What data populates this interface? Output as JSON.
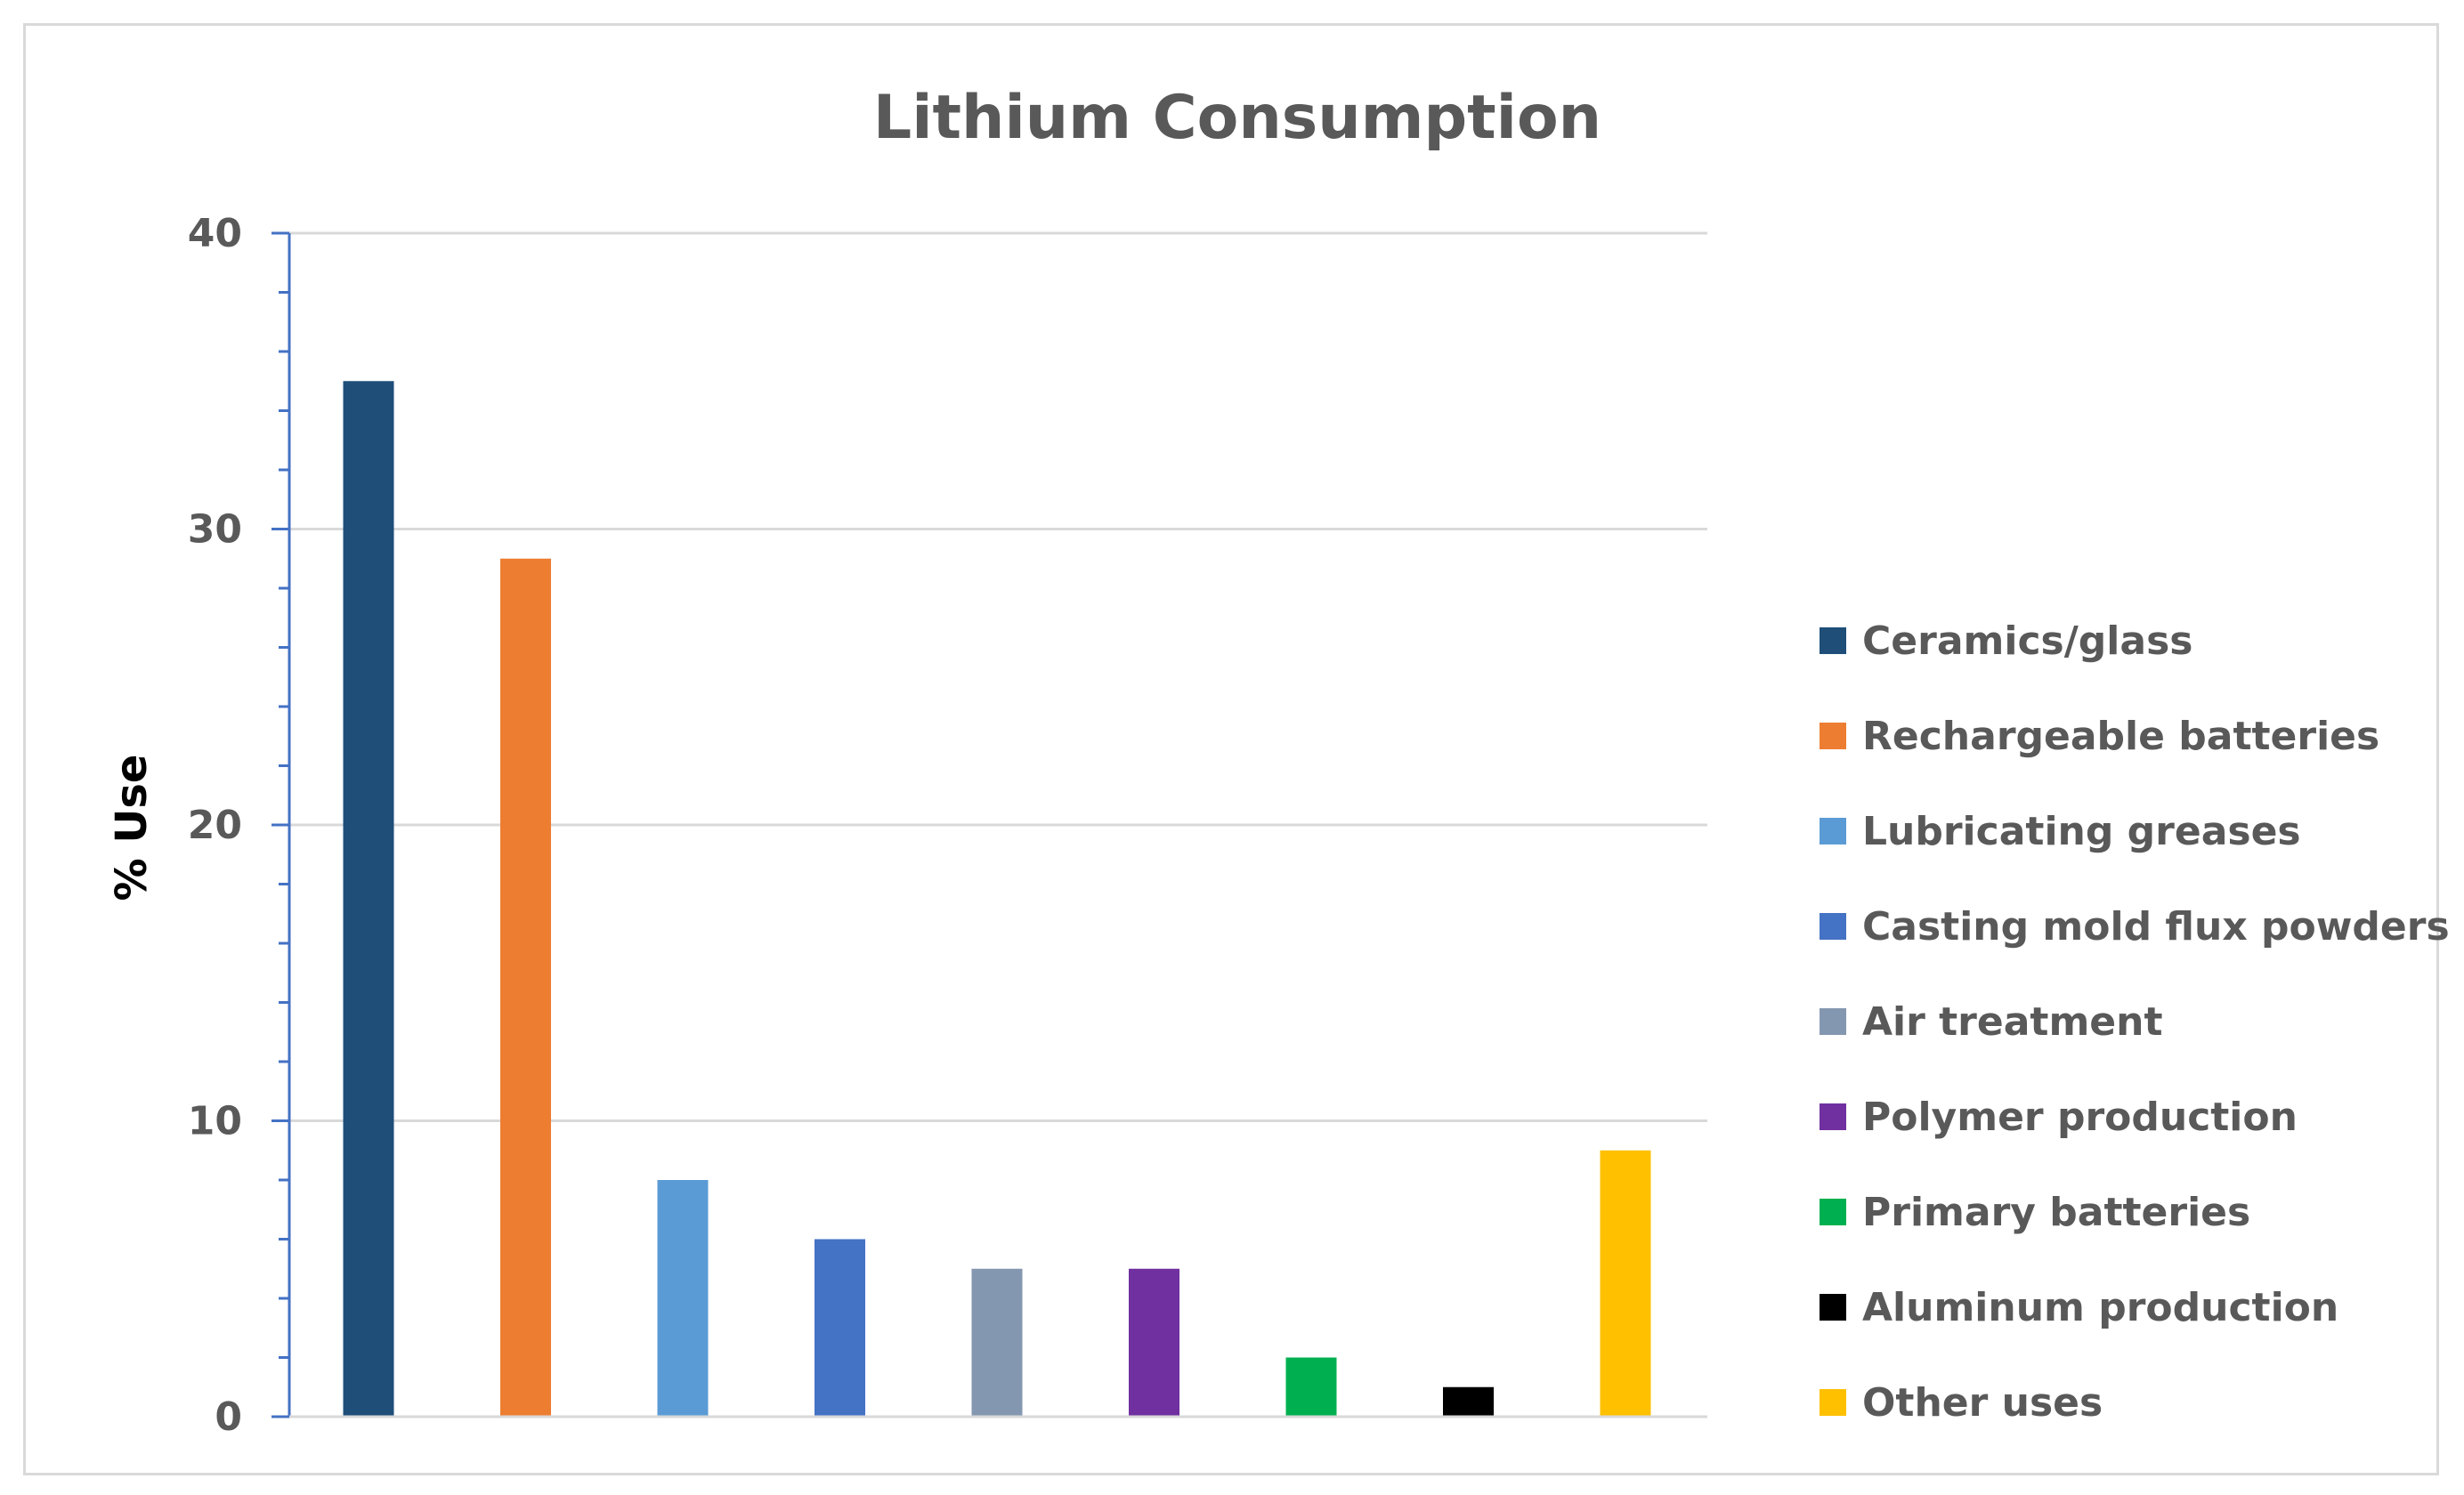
{
  "chart_data": {
    "type": "bar",
    "title": "Lithium Consumption",
    "xlabel": "",
    "ylabel": "% Use",
    "ylim": [
      0,
      40
    ],
    "yticks": [
      0,
      10,
      20,
      30,
      40
    ],
    "grid": true,
    "legend_position": "right",
    "categories": [
      "Ceramics/glass",
      "Rechargeable batteries",
      "Lubricating greases",
      "Casting mold flux powders",
      "Air treatment",
      "Polymer production",
      "Primary batteries",
      "Aluminum production",
      "Other uses"
    ],
    "values": [
      35,
      29,
      8,
      6,
      5,
      5,
      2,
      1,
      9
    ],
    "colors": [
      "#1f4e79",
      "#ed7d31",
      "#5b9bd5",
      "#4472c4",
      "#8497b0",
      "#7030a0",
      "#00b050",
      "#000000",
      "#ffc000"
    ],
    "axis_color": "#4472c4",
    "grid_color": "#d9d9d9"
  }
}
